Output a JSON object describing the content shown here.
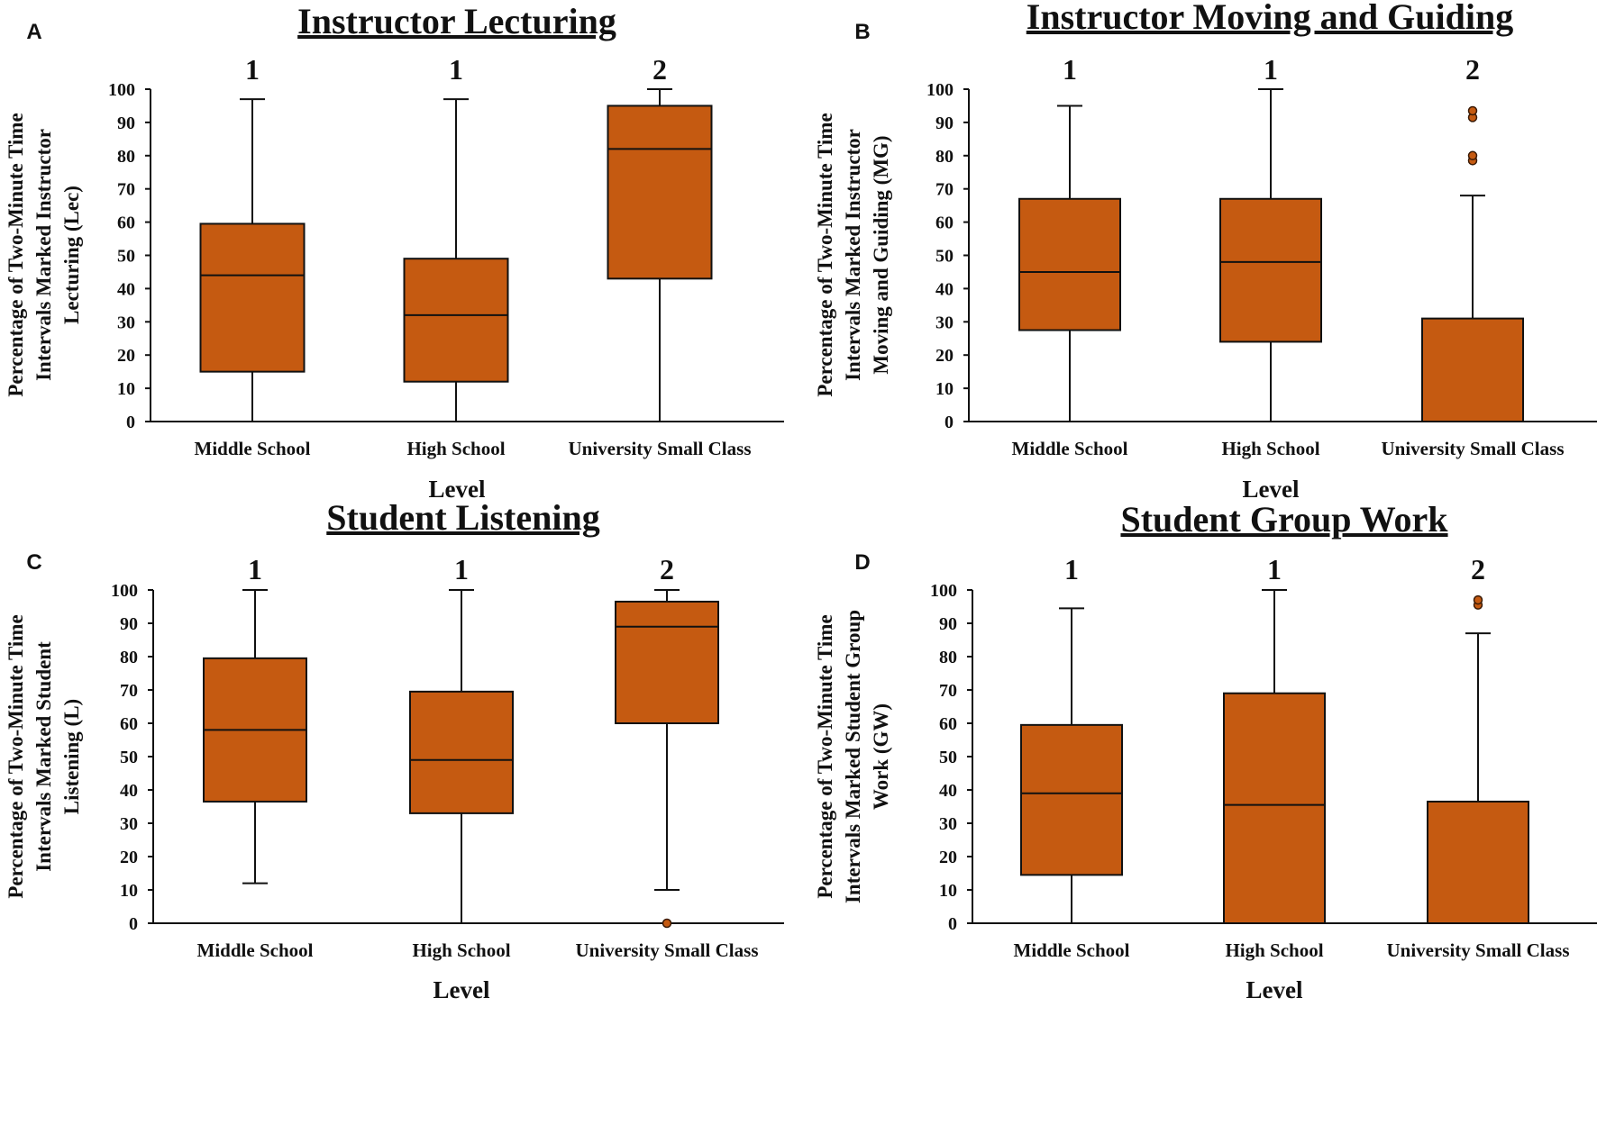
{
  "style": {
    "box_fill": "#C55A11",
    "line": "#111111",
    "outlier": "#C55A11",
    "background": "#FFFFFF"
  },
  "chart_data": [
    {
      "panel": "A",
      "type": "box",
      "title": "Instructor Lecturing",
      "xlabel": "Level",
      "ylabel": [
        "Percentage of Two-Minute Time",
        "Intervals Marked Instructor",
        "Lecturing (Lec)"
      ],
      "ylim": [
        0,
        100
      ],
      "yticks": [
        0,
        10,
        20,
        30,
        40,
        50,
        60,
        70,
        80,
        90,
        100
      ],
      "categories": [
        "Middle School",
        "High School",
        "University Small Class"
      ],
      "groups": [
        "1",
        "1",
        "2"
      ],
      "boxes": [
        {
          "min": 0,
          "q1": 15,
          "median": 44,
          "q3": 59.5,
          "max": 97,
          "outliers": []
        },
        {
          "min": 0,
          "q1": 12,
          "median": 32,
          "q3": 49,
          "max": 97,
          "outliers": []
        },
        {
          "min": 0,
          "q1": 43,
          "median": 82,
          "q3": 95,
          "max": 100,
          "outliers": []
        }
      ]
    },
    {
      "panel": "B",
      "type": "box",
      "title": "Instructor Moving and Guiding",
      "xlabel": "Level",
      "ylabel": [
        "Percentage of Two-Minute Time",
        "Intervals Marked Instructor",
        "Moving and Guiding (MG)"
      ],
      "ylim": [
        0,
        100
      ],
      "yticks": [
        0,
        10,
        20,
        30,
        40,
        50,
        60,
        70,
        80,
        90,
        100
      ],
      "categories": [
        "Middle School",
        "High School",
        "University Small Class"
      ],
      "groups": [
        "1",
        "1",
        "2"
      ],
      "boxes": [
        {
          "min": 0,
          "q1": 27.5,
          "median": 45,
          "q3": 67,
          "max": 95,
          "outliers": []
        },
        {
          "min": 0,
          "q1": 24,
          "median": 48,
          "q3": 67,
          "max": 100,
          "outliers": []
        },
        {
          "min": 0,
          "q1": 0,
          "median": 0,
          "q3": 31,
          "max": 68,
          "outliers": [
            78.5,
            80,
            91.5,
            93.5
          ]
        }
      ]
    },
    {
      "panel": "C",
      "type": "box",
      "title": "Student Listening",
      "xlabel": "Level",
      "ylabel": [
        "Percentage of Two-Minute Time",
        "Intervals Marked Student",
        "Listening (L)"
      ],
      "ylim": [
        0,
        100
      ],
      "yticks": [
        0,
        10,
        20,
        30,
        40,
        50,
        60,
        70,
        80,
        90,
        100
      ],
      "categories": [
        "Middle School",
        "High School",
        "University Small Class"
      ],
      "groups": [
        "1",
        "1",
        "2"
      ],
      "boxes": [
        {
          "min": 12,
          "q1": 36.5,
          "median": 58,
          "q3": 79.5,
          "max": 100,
          "outliers": []
        },
        {
          "min": 0,
          "q1": 33,
          "median": 49,
          "q3": 69.5,
          "max": 100,
          "outliers": []
        },
        {
          "min": 10,
          "q1": 60,
          "median": 89,
          "q3": 96.5,
          "max": 100,
          "outliers": [
            0
          ]
        }
      ]
    },
    {
      "panel": "D",
      "type": "box",
      "title": "Student Group Work",
      "xlabel": "Level",
      "ylabel": [
        "Percentage of Two-Minute Time",
        "Intervals Marked Student Group",
        "Work (GW)"
      ],
      "ylim": [
        0,
        100
      ],
      "yticks": [
        0,
        10,
        20,
        30,
        40,
        50,
        60,
        70,
        80,
        90,
        100
      ],
      "categories": [
        "Middle School",
        "High School",
        "University Small Class"
      ],
      "groups": [
        "1",
        "1",
        "2"
      ],
      "boxes": [
        {
          "min": 0,
          "q1": 14.5,
          "median": 39,
          "q3": 59.5,
          "max": 94.5,
          "outliers": []
        },
        {
          "min": 0,
          "q1": 0,
          "median": 35.5,
          "q3": 69,
          "max": 100,
          "outliers": []
        },
        {
          "min": 0,
          "q1": 0,
          "median": 0,
          "q3": 36.5,
          "max": 87,
          "outliers": [
            95.5,
            97
          ]
        }
      ]
    }
  ]
}
